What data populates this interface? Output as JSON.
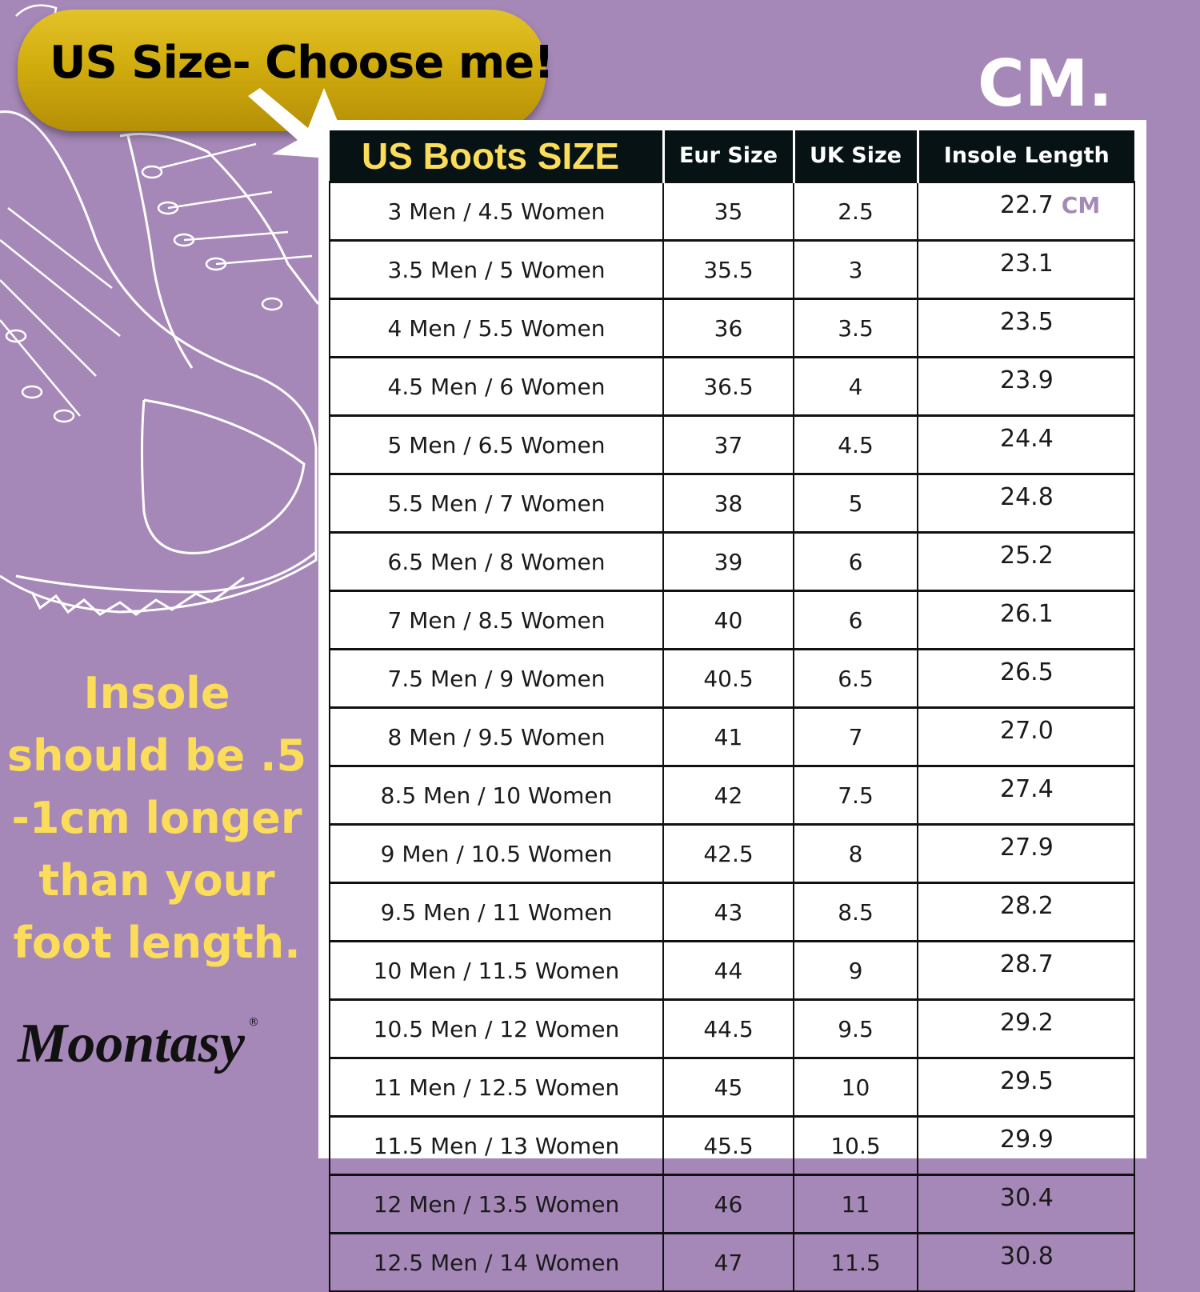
{
  "banner": {
    "text": "US Size- Choose me!"
  },
  "unit_title": "CM.",
  "table": {
    "headers": [
      "US Boots SIZE",
      "Eur Size",
      "UK Size",
      "Insole Length"
    ],
    "unit_label": "CM",
    "rows": [
      [
        "3 Men / 4.5 Women",
        "35",
        "2.5",
        "22.7"
      ],
      [
        "3.5 Men / 5 Women",
        "35.5",
        "3",
        "23.1"
      ],
      [
        "4 Men / 5.5 Women",
        "36",
        "3.5",
        "23.5"
      ],
      [
        "4.5 Men / 6 Women",
        "36.5",
        "4",
        "23.9"
      ],
      [
        "5 Men / 6.5 Women",
        "37",
        "4.5",
        "24.4"
      ],
      [
        "5.5 Men / 7 Women",
        "38",
        "5",
        "24.8"
      ],
      [
        "6.5 Men / 8 Women",
        "39",
        "6",
        "25.2"
      ],
      [
        "7 Men / 8.5 Women",
        "40",
        "6",
        "26.1"
      ],
      [
        "7.5 Men / 9 Women",
        "40.5",
        "6.5",
        "26.5"
      ],
      [
        "8 Men / 9.5 Women",
        "41",
        "7",
        "27.0"
      ],
      [
        "8.5 Men / 10 Women",
        "42",
        "7.5",
        "27.4"
      ],
      [
        "9 Men / 10.5 Women",
        "42.5",
        "8",
        "27.9"
      ],
      [
        "9.5 Men / 11 Women",
        "43",
        "8.5",
        "28.2"
      ],
      [
        "10 Men / 11.5 Women",
        "44",
        "9",
        "28.7"
      ],
      [
        "10.5 Men / 12 Women",
        "44.5",
        "9.5",
        "29.2"
      ],
      [
        "11 Men / 12.5 Women",
        "45",
        "10",
        "29.5"
      ],
      [
        "11.5 Men / 13 Women",
        "45.5",
        "10.5",
        "29.9"
      ],
      [
        "12 Men / 13.5 Women",
        "46",
        "11",
        "30.4"
      ],
      [
        "12.5 Men / 14 Women",
        "47",
        "11.5",
        "30.8"
      ]
    ]
  },
  "note": "Insole should be .5 -1cm longer than your foot length.",
  "brand": {
    "name": "Moontasy",
    "mark": "®"
  },
  "colors": {
    "background": "#a688b8",
    "accent": "#fbdd5a",
    "header": "#061214",
    "pill": "#d2ad0e"
  }
}
